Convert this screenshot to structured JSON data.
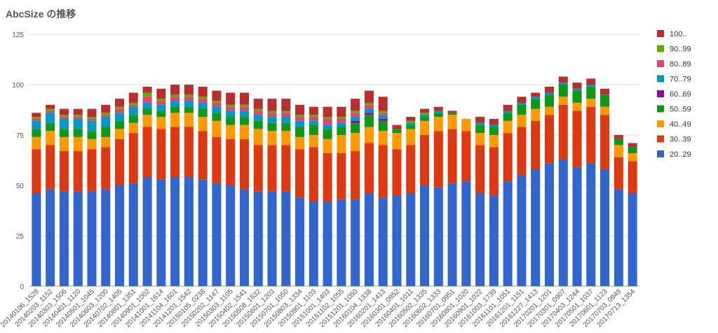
{
  "chart_data": {
    "type": "bar",
    "stacked": true,
    "title": "AbcSize の推移",
    "xlabel": "",
    "ylabel": "",
    "ylim": [
      0,
      125
    ],
    "yticks": [
      0,
      25,
      50,
      75,
      100,
      125
    ],
    "grid": true,
    "legend_position": "right",
    "categories": [
      "20140106_1528",
      "20140203_1152",
      "20140303_1506",
      "20140401_1120",
      "20140501_1045",
      "20140603_1200",
      "20140702_1405",
      "20140801_1351",
      "20140901_1002",
      "20141001_1614",
      "20141104_1601",
      "20141201_1542",
      "20150105_0238",
      "20150202_1147",
      "20150303_1105",
      "20150402_1541",
      "20150508_1632",
      "20150601_1203",
      "20150701_1050",
      "20150803_1334",
      "20150901_1103",
      "20151001_1403",
      "20151102_1055",
      "20151201_1050",
      "20160104_1338",
      "20160201_1413",
      "20160301_0952",
      "20160401_1011",
      "20160502_1335",
      "20160602_1333",
      "20160701_0951",
      "20160801_1020",
      "20160901_1022",
      "20161003_1739",
      "20161101_1051",
      "20161201_1151",
      "20161227_1413",
      "20170201_1201",
      "20170301_0907",
      "20170403_1244",
      "20170501_1037",
      "20170601_1123",
      "20170703_0949",
      "20170713_1354"
    ],
    "series": [
      {
        "name": "20..29",
        "color": "#3366cc",
        "values": [
          46,
          48,
          47,
          47,
          47,
          48,
          50,
          51,
          54,
          53,
          54,
          54,
          53,
          51,
          50,
          48,
          47,
          47,
          47,
          44,
          42,
          42,
          43,
          43,
          46,
          44,
          45,
          46,
          50,
          49,
          51,
          52,
          46,
          45,
          52,
          55,
          58,
          61,
          63,
          59,
          61,
          58,
          48,
          46
        ]
      },
      {
        "name": "30..39",
        "color": "#dc3912",
        "values": [
          22,
          22,
          20,
          20,
          21,
          21,
          23,
          25,
          25,
          25,
          25,
          25,
          24,
          23,
          23,
          25,
          23,
          23,
          23,
          24,
          27,
          24,
          23,
          24,
          25,
          26,
          23,
          24,
          25,
          28,
          27,
          25,
          24,
          24,
          24,
          24,
          24,
          24,
          27,
          28,
          28,
          27,
          16,
          16
        ]
      },
      {
        "name": "40..49",
        "color": "#ff9900",
        "values": [
          6,
          7,
          7,
          7,
          5,
          5,
          5,
          5,
          6,
          6,
          7,
          7,
          7,
          8,
          7,
          7,
          8,
          7,
          7,
          6,
          6,
          7,
          9,
          9,
          8,
          7,
          8,
          8,
          7,
          7,
          7,
          6,
          6,
          6,
          6,
          6,
          6,
          4,
          4,
          4,
          4,
          4,
          6,
          4
        ]
      },
      {
        "name": "50..59",
        "color": "#109618",
        "values": [
          4,
          4,
          4,
          4,
          4,
          5,
          4,
          4,
          3,
          3,
          3,
          3,
          4,
          4,
          4,
          4,
          4,
          4,
          4,
          5,
          5,
          5,
          4,
          5,
          6,
          5,
          2,
          2,
          2,
          2,
          1,
          0,
          4,
          4,
          4,
          5,
          5,
          6,
          6,
          6,
          6,
          6,
          3,
          3
        ]
      },
      {
        "name": "60..69",
        "color": "#990099",
        "values": [
          0,
          0,
          0,
          0,
          0,
          0,
          0,
          0,
          0,
          0,
          0,
          0,
          0,
          0,
          0,
          0,
          0,
          0,
          0,
          0,
          0,
          0,
          0,
          1,
          1,
          1,
          0,
          0,
          0,
          0,
          0,
          0,
          0,
          0,
          0,
          0,
          0,
          0,
          0,
          0,
          0,
          0,
          0,
          0
        ]
      },
      {
        "name": "70..79",
        "color": "#0099c6",
        "values": [
          4,
          5,
          5,
          5,
          5,
          5,
          4,
          4,
          3,
          3,
          3,
          3,
          3,
          3,
          3,
          3,
          3,
          3,
          3,
          3,
          2,
          2,
          2,
          2,
          2,
          2,
          0,
          1,
          1,
          1,
          0,
          0,
          1,
          1,
          1,
          1,
          1,
          1,
          1,
          1,
          1,
          0,
          0,
          0
        ]
      },
      {
        "name": "80..89",
        "color": "#dd4477",
        "values": [
          1,
          1,
          1,
          1,
          1,
          1,
          2,
          1,
          3,
          2,
          2,
          2,
          2,
          2,
          2,
          2,
          2,
          2,
          2,
          2,
          2,
          3,
          2,
          2,
          2,
          1,
          0,
          0,
          0,
          0,
          0,
          0,
          0,
          0,
          0,
          0,
          0,
          0,
          0,
          0,
          0,
          0,
          0,
          0
        ]
      },
      {
        "name": "90..99",
        "color": "#66aa00",
        "values": [
          1,
          1,
          1,
          1,
          1,
          1,
          1,
          1,
          2,
          1,
          1,
          1,
          1,
          1,
          1,
          1,
          1,
          1,
          1,
          1,
          1,
          1,
          1,
          1,
          1,
          1,
          0,
          1,
          1,
          0,
          0,
          0,
          0,
          0,
          0,
          0,
          0,
          0,
          0,
          0,
          0,
          0,
          0,
          0
        ]
      },
      {
        "name": "100..",
        "color": "#b82e2e",
        "values": [
          2,
          2,
          3,
          3,
          4,
          4,
          4,
          5,
          3,
          5,
          5,
          5,
          5,
          5,
          6,
          6,
          5,
          6,
          6,
          5,
          4,
          5,
          5,
          6,
          6,
          7,
          2,
          2,
          2,
          2,
          1,
          0,
          3,
          3,
          3,
          3,
          2,
          3,
          3,
          3,
          3,
          3,
          2,
          2
        ]
      }
    ]
  }
}
